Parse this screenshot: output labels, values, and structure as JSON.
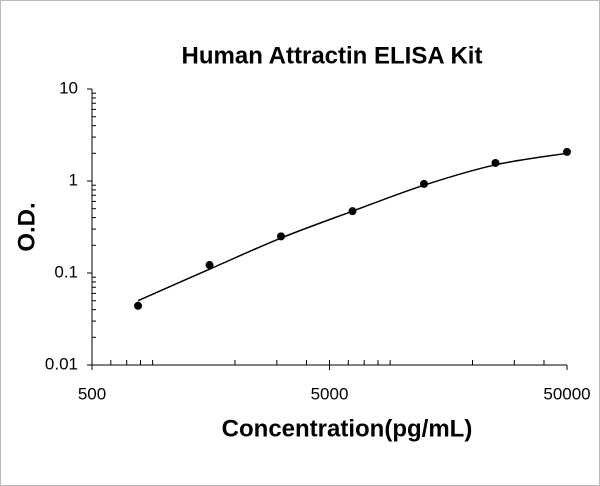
{
  "chart_data": {
    "type": "line",
    "title": "Human Attractin ELISA Kit",
    "x_label": "Concentration(pg/mL)",
    "y_label": "O.D.",
    "x": [
      781.25,
      1562.5,
      3125,
      6250,
      12500,
      25000,
      50000
    ],
    "series": [
      {
        "mode": "markers",
        "color": "#000000",
        "values": [
          0.044,
          0.122,
          0.25,
          0.47,
          0.93,
          1.57,
          2.07
        ]
      },
      {
        "mode": "line",
        "color": "#000000",
        "values": [
          0.05,
          0.11,
          0.24,
          0.47,
          0.9,
          1.5,
          2.0
        ]
      }
    ],
    "xlim": [
      500,
      50000
    ],
    "xticks": [
      500,
      5000,
      50000
    ],
    "x_log": true,
    "ylim": [
      0.01,
      10
    ],
    "yticks": [
      0.01,
      0.1,
      1,
      10
    ],
    "y_log": true
  }
}
